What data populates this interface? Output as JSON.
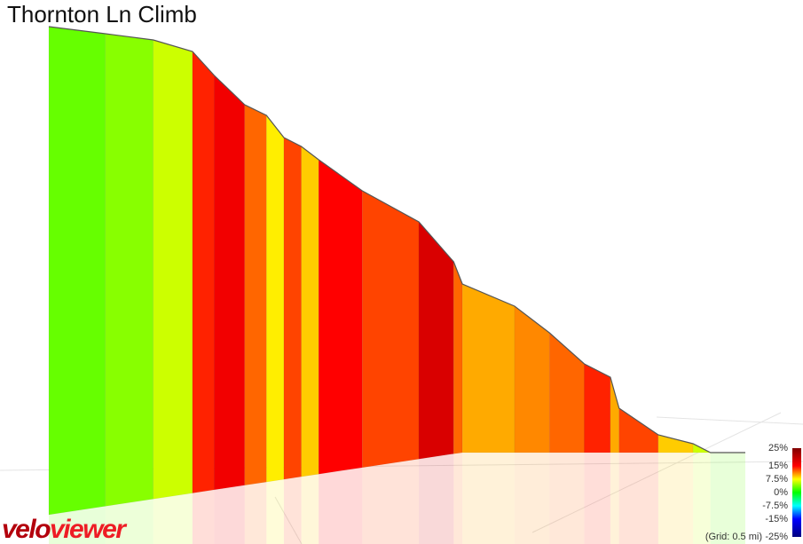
{
  "chart_data": {
    "type": "profile3d",
    "title": "Thornton Ln Climb",
    "x": [
      0,
      0.13,
      0.24,
      0.33,
      0.38,
      0.45,
      0.5,
      0.54,
      0.58,
      0.62,
      0.72,
      0.85,
      0.93,
      0.95,
      1.07,
      1.15,
      1.23,
      1.29,
      1.31,
      1.4,
      1.48,
      1.52,
      1.6
    ],
    "elevation": [
      485,
      477,
      470,
      457,
      430,
      397,
      385,
      360,
      350,
      335,
      300,
      265,
      220,
      195,
      170,
      140,
      105,
      90,
      55,
      25,
      15,
      5,
      5
    ],
    "gradient": [
      3,
      4,
      6,
      14,
      16,
      12,
      8,
      13,
      9,
      15,
      13,
      18,
      12,
      10,
      11,
      12,
      14,
      10,
      13,
      9,
      6,
      3
    ],
    "xlim": [
      0,
      1.6
    ],
    "ylim": [
      0,
      485
    ],
    "legend": {
      "ticks": [
        {
          "value": 25,
          "label": "25%",
          "color": "#800000"
        },
        {
          "value": 15,
          "label": "15%",
          "color": "#ff0000"
        },
        {
          "value": 7.5,
          "label": "7.5%",
          "color": "#ffff00"
        },
        {
          "value": 0,
          "label": "0%",
          "color": "#00ff00"
        },
        {
          "value": -7.5,
          "label": "-7.5%",
          "color": "#00ffff"
        },
        {
          "value": -15,
          "label": "-15%",
          "color": "#0000ff"
        },
        {
          "value": -25,
          "label": "-25%",
          "color": "#000080"
        }
      ],
      "note": "(Grid: 0.5 mi)"
    },
    "brand": [
      "velo",
      "viewer"
    ]
  }
}
